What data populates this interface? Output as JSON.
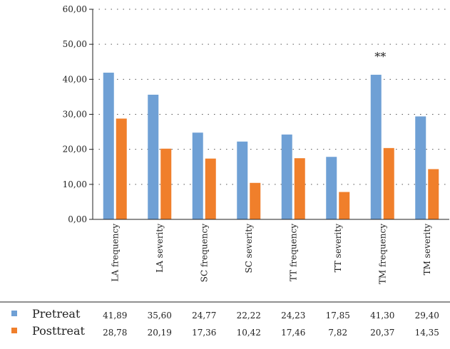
{
  "chart_data": {
    "type": "bar",
    "categories": [
      "LA frequency",
      "LA severity",
      "SC frequency",
      "SC severity",
      "TT frequency",
      "TT severity",
      "TM frequency",
      "TM severity"
    ],
    "series": [
      {
        "name": "Pretreat",
        "color": "#6fa0d5",
        "values": [
          41.89,
          35.6,
          24.77,
          22.22,
          24.23,
          17.85,
          41.3,
          29.4
        ],
        "labels": [
          "41,89",
          "35,60",
          "24,77",
          "22,22",
          "24,23",
          "17,85",
          "41,30",
          "29,40"
        ]
      },
      {
        "name": "Posttreat",
        "color": "#f07f2b",
        "values": [
          28.78,
          20.19,
          17.36,
          10.42,
          17.46,
          7.82,
          20.37,
          14.35
        ],
        "labels": [
          "28,78",
          "20,19",
          "17,36",
          "10,42",
          "17,46",
          "7,82",
          "20,37",
          "14,35"
        ]
      }
    ],
    "yticks": [
      "0,00",
      "10,00",
      "20,00",
      "30,00",
      "40,00",
      "50,00",
      "60,00"
    ],
    "ylim": [
      0,
      60
    ],
    "grid": "dotted horizontal",
    "annotations": [
      {
        "category": "TM frequency",
        "text": "**"
      }
    ],
    "legend": "bottom-left, as data table"
  }
}
